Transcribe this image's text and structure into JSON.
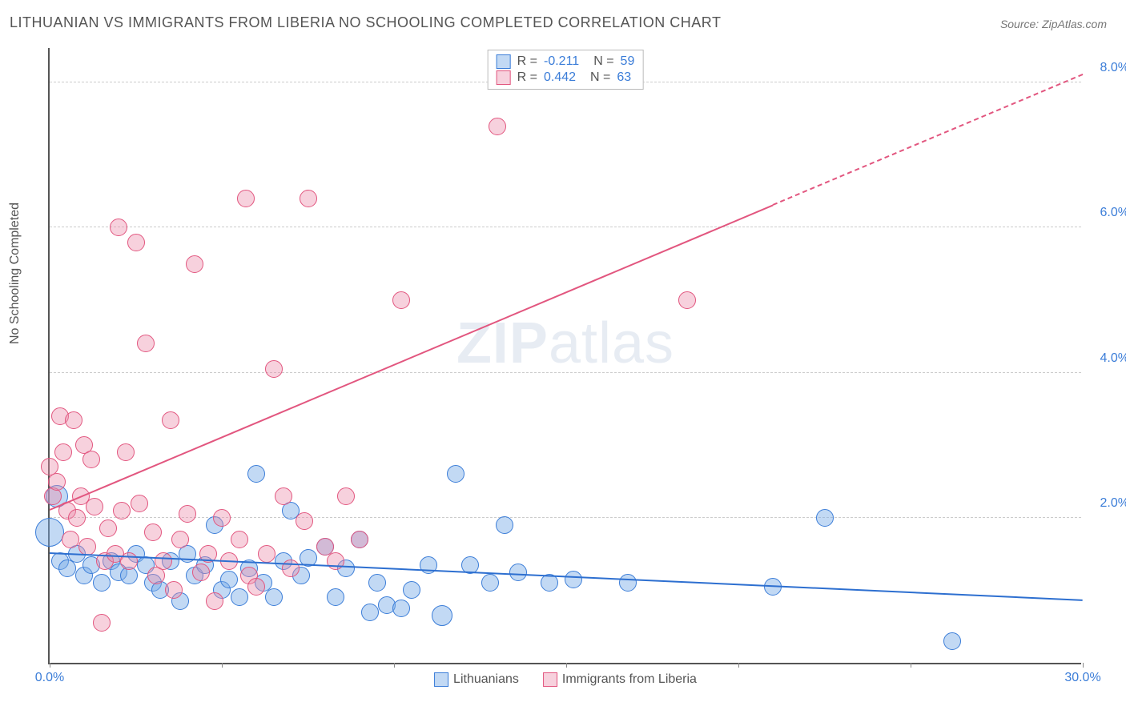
{
  "title": "LITHUANIAN VS IMMIGRANTS FROM LIBERIA NO SCHOOLING COMPLETED CORRELATION CHART",
  "source": "Source: ZipAtlas.com",
  "watermark": {
    "bold": "ZIP",
    "light": "atlas"
  },
  "chart": {
    "type": "scatter",
    "ylabel": "No Schooling Completed",
    "xlim": [
      0,
      30
    ],
    "ylim": [
      0,
      8.5
    ],
    "xticks": [
      0,
      5,
      10,
      15,
      20,
      25,
      30
    ],
    "xlabels_shown": {
      "0": "0.0%",
      "30": "30.0%"
    },
    "yticks": [
      2,
      4,
      6,
      8
    ],
    "ytick_fmt": [
      "2.0%",
      "4.0%",
      "6.0%",
      "8.0%"
    ],
    "grid_color": "#cccccc",
    "axis_color": "#555555",
    "label_fontsize": 16,
    "tick_color": "#3b7dd8",
    "background_color": "#ffffff",
    "point_radius": 11,
    "point_opacity": 0.55,
    "series": [
      {
        "name": "Lithuanians",
        "color_fill": "rgba(120,170,230,0.45)",
        "color_stroke": "#3b7dd8",
        "R": "-0.211",
        "N": "59",
        "trend": {
          "x1": 0,
          "y1": 1.5,
          "x2": 30,
          "y2": 0.85,
          "color": "#2d6fd0",
          "width": 2,
          "dash": false
        },
        "points": [
          [
            0.0,
            1.8,
            18
          ],
          [
            0.2,
            2.3,
            14
          ],
          [
            0.3,
            1.4,
            11
          ],
          [
            0.5,
            1.3,
            11
          ],
          [
            0.8,
            1.5,
            11
          ],
          [
            1.0,
            1.2,
            11
          ],
          [
            1.2,
            1.35,
            11
          ],
          [
            1.5,
            1.1,
            11
          ],
          [
            1.8,
            1.4,
            11
          ],
          [
            2.0,
            1.25,
            11
          ],
          [
            2.3,
            1.2,
            11
          ],
          [
            2.5,
            1.5,
            11
          ],
          [
            2.8,
            1.35,
            11
          ],
          [
            3.0,
            1.1,
            11
          ],
          [
            3.2,
            1.0,
            11
          ],
          [
            3.5,
            1.4,
            11
          ],
          [
            3.8,
            0.85,
            11
          ],
          [
            4.0,
            1.5,
            11
          ],
          [
            4.2,
            1.2,
            11
          ],
          [
            4.5,
            1.35,
            11
          ],
          [
            4.8,
            1.9,
            11
          ],
          [
            5.0,
            1.0,
            11
          ],
          [
            5.2,
            1.15,
            11
          ],
          [
            5.5,
            0.9,
            11
          ],
          [
            5.8,
            1.3,
            11
          ],
          [
            6.0,
            2.6,
            11
          ],
          [
            6.2,
            1.1,
            11
          ],
          [
            6.5,
            0.9,
            11
          ],
          [
            6.8,
            1.4,
            11
          ],
          [
            7.0,
            2.1,
            11
          ],
          [
            7.3,
            1.2,
            11
          ],
          [
            7.5,
            1.45,
            11
          ],
          [
            8.0,
            1.6,
            11
          ],
          [
            8.3,
            0.9,
            11
          ],
          [
            8.6,
            1.3,
            11
          ],
          [
            9.0,
            1.7,
            11
          ],
          [
            9.3,
            0.7,
            11
          ],
          [
            9.5,
            1.1,
            11
          ],
          [
            9.8,
            0.8,
            11
          ],
          [
            10.2,
            0.75,
            11
          ],
          [
            10.5,
            1.0,
            11
          ],
          [
            11.0,
            1.35,
            11
          ],
          [
            11.4,
            0.65,
            13
          ],
          [
            11.8,
            2.6,
            11
          ],
          [
            12.2,
            1.35,
            11
          ],
          [
            12.8,
            1.1,
            11
          ],
          [
            13.2,
            1.9,
            11
          ],
          [
            13.6,
            1.25,
            11
          ],
          [
            14.5,
            1.1,
            11
          ],
          [
            15.2,
            1.15,
            11
          ],
          [
            16.8,
            1.1,
            11
          ],
          [
            21.0,
            1.05,
            11
          ],
          [
            22.5,
            2.0,
            11
          ],
          [
            26.2,
            0.3,
            11
          ]
        ]
      },
      {
        "name": "Immigrants from Liberia",
        "color_fill": "rgba(235,140,170,0.40)",
        "color_stroke": "#e2567f",
        "R": "0.442",
        "N": "63",
        "trend": {
          "x1": 0,
          "y1": 2.1,
          "x2": 21,
          "y2": 6.3,
          "color": "#e2567f",
          "width": 2,
          "dash": false,
          "dash_ext": {
            "x1": 21,
            "y1": 6.3,
            "x2": 30,
            "y2": 8.1
          }
        },
        "points": [
          [
            0.0,
            2.7,
            11
          ],
          [
            0.1,
            2.3,
            11
          ],
          [
            0.2,
            2.5,
            11
          ],
          [
            0.3,
            3.4,
            11
          ],
          [
            0.4,
            2.9,
            11
          ],
          [
            0.5,
            2.1,
            11
          ],
          [
            0.6,
            1.7,
            11
          ],
          [
            0.7,
            3.35,
            11
          ],
          [
            0.8,
            2.0,
            11
          ],
          [
            0.9,
            2.3,
            11
          ],
          [
            1.0,
            3.0,
            11
          ],
          [
            1.1,
            1.6,
            11
          ],
          [
            1.2,
            2.8,
            11
          ],
          [
            1.3,
            2.15,
            11
          ],
          [
            1.5,
            0.55,
            11
          ],
          [
            1.6,
            1.4,
            11
          ],
          [
            1.7,
            1.85,
            11
          ],
          [
            1.9,
            1.5,
            11
          ],
          [
            2.0,
            6.0,
            11
          ],
          [
            2.1,
            2.1,
            11
          ],
          [
            2.2,
            2.9,
            11
          ],
          [
            2.3,
            1.4,
            11
          ],
          [
            2.5,
            5.8,
            11
          ],
          [
            2.6,
            2.2,
            11
          ],
          [
            2.8,
            4.4,
            11
          ],
          [
            3.0,
            1.8,
            11
          ],
          [
            3.1,
            1.2,
            11
          ],
          [
            3.3,
            1.4,
            11
          ],
          [
            3.5,
            3.35,
            11
          ],
          [
            3.6,
            1.0,
            11
          ],
          [
            3.8,
            1.7,
            11
          ],
          [
            4.0,
            2.05,
            11
          ],
          [
            4.2,
            5.5,
            11
          ],
          [
            4.4,
            1.25,
            11
          ],
          [
            4.6,
            1.5,
            11
          ],
          [
            4.8,
            0.85,
            11
          ],
          [
            5.0,
            2.0,
            11
          ],
          [
            5.2,
            1.4,
            11
          ],
          [
            5.5,
            1.7,
            11
          ],
          [
            5.7,
            6.4,
            11
          ],
          [
            5.8,
            1.2,
            11
          ],
          [
            6.0,
            1.05,
            11
          ],
          [
            6.3,
            1.5,
            11
          ],
          [
            6.5,
            4.05,
            11
          ],
          [
            6.8,
            2.3,
            11
          ],
          [
            7.0,
            1.3,
            11
          ],
          [
            7.4,
            1.95,
            11
          ],
          [
            7.5,
            6.4,
            11
          ],
          [
            8.0,
            1.6,
            11
          ],
          [
            8.3,
            1.4,
            11
          ],
          [
            8.6,
            2.3,
            11
          ],
          [
            9.0,
            1.7,
            11
          ],
          [
            10.2,
            5.0,
            11
          ],
          [
            13.0,
            7.4,
            11
          ],
          [
            18.5,
            5.0,
            11
          ]
        ]
      }
    ]
  }
}
